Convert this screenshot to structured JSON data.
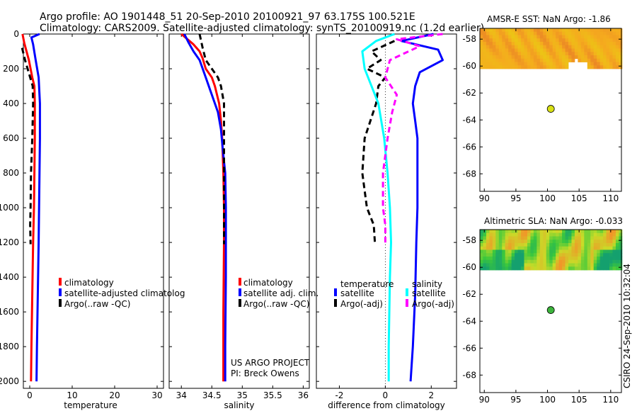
{
  "figure": {
    "title_line1": "Argo profile: AO 1901448_51 20-Sep-2010 20100921_97 63.175S 100.521E",
    "title_line2": "Climatology: CARS2009. Satellite-adjusted climatology: synTS_20100919.nc (1.2d earlier)",
    "side_stamp": "CSIRO 24-Sep-2010 10:32:04",
    "project_line1": "US ARGO PROJECT",
    "project_line2": "PI: Breck Owens"
  },
  "colors": {
    "climatology": "#ff0000",
    "satellite": "#0000ff",
    "argo": "#000000",
    "salinity_satellite": "#00ffff",
    "salinity_argo": "#ff00ff"
  },
  "chart_data": [
    {
      "id": "temperature",
      "type": "line",
      "xlabel": "temperature",
      "ylabel": "",
      "xlim": [
        -1.5,
        31.5
      ],
      "ylim": [
        2040,
        0
      ],
      "xticks": [
        0,
        10,
        20,
        30
      ],
      "yticks": [
        0,
        200,
        400,
        600,
        800,
        1000,
        1200,
        1400,
        1600,
        1800,
        2000
      ],
      "legend": [
        "climatology",
        "satellite-adjusted climatolog",
        "Argo(..raw -QC)"
      ],
      "series": [
        {
          "name": "climatology",
          "color": "#ff0000",
          "dash": "",
          "x": [
            -1.7,
            -1.3,
            -0.2,
            0.6,
            1.1,
            1.2,
            1.2,
            1.1,
            1.0,
            0.8,
            0.6,
            0.4,
            0.3
          ],
          "y": [
            0,
            50,
            150,
            250,
            300,
            400,
            600,
            800,
            1000,
            1200,
            1500,
            1800,
            2000
          ]
        },
        {
          "name": "satellite-adjusted climatology",
          "color": "#0000ff",
          "dash": "",
          "x": [
            2.3,
            0.4,
            0.8,
            1.4,
            2.1,
            2.4,
            2.4,
            2.3,
            2.2,
            2.1,
            1.9,
            1.7,
            1.6
          ],
          "y": [
            0,
            20,
            60,
            150,
            250,
            400,
            600,
            800,
            1000,
            1200,
            1500,
            1800,
            2000
          ]
        },
        {
          "name": "Argo(..raw -QC)",
          "color": "#000000",
          "dash": "8,5",
          "x": [
            -1.8,
            -1.1,
            0.1,
            0.7,
            0.8,
            0.6,
            0.3,
            0.2,
            0.1,
            0.2
          ],
          "y": [
            80,
            150,
            250,
            300,
            400,
            600,
            800,
            1000,
            1100,
            1210
          ]
        }
      ]
    },
    {
      "id": "salinity",
      "type": "line",
      "xlabel": "salinity",
      "ylabel": "",
      "xlim": [
        33.8,
        36.1
      ],
      "ylim": [
        2040,
        0
      ],
      "xticks": [
        34,
        34.5,
        35,
        35.5,
        36
      ],
      "legend": [
        "climatology",
        "satellite adj. clim.",
        "Argo(..raw -QC)"
      ],
      "series": [
        {
          "name": "climatology",
          "color": "#ff0000",
          "dash": "",
          "x": [
            34.0,
            34.2,
            34.3,
            34.35,
            34.4,
            34.5,
            34.55,
            34.62,
            34.65,
            34.67,
            34.69,
            34.7,
            34.7,
            34.69,
            34.69
          ],
          "y": [
            0,
            60,
            100,
            140,
            200,
            250,
            300,
            400,
            500,
            600,
            800,
            1000,
            1200,
            1600,
            2000
          ]
        },
        {
          "name": "satellite adj. clim.",
          "color": "#0000ff",
          "dash": "",
          "x": [
            34.05,
            34.12,
            34.2,
            34.3,
            34.4,
            34.5,
            34.6,
            34.65,
            34.69,
            34.72,
            34.73,
            34.73,
            34.73,
            34.72,
            34.72
          ],
          "y": [
            0,
            50,
            100,
            150,
            250,
            350,
            450,
            550,
            700,
            800,
            1000,
            1200,
            1400,
            1800,
            2000
          ]
        },
        {
          "name": "Argo(..raw -QC)",
          "color": "#000000",
          "dash": "8,5",
          "x": [
            34.3,
            34.35,
            34.4,
            34.5,
            34.6,
            34.65,
            34.7,
            34.7,
            34.7,
            34.7,
            34.7
          ],
          "y": [
            0,
            80,
            150,
            200,
            250,
            300,
            400,
            600,
            800,
            1000,
            1210
          ]
        }
      ]
    },
    {
      "id": "difference",
      "type": "line",
      "xlabel": "difference from climatology",
      "ylabel": "",
      "xlim": [
        -3.0,
        3.1
      ],
      "ylim": [
        2040,
        0
      ],
      "xticks": [
        -2,
        0,
        2
      ],
      "legend_headers": [
        "temperature",
        "salinity"
      ],
      "legend": [
        "satellite",
        "Argo(-adj)",
        "satellite",
        "Argo(-adj)"
      ],
      "series": [
        {
          "name": "satellite",
          "quantity": "temperature",
          "color": "#0000ff",
          "dash": "",
          "x": [
            2.1,
            0.7,
            2.3,
            2.5,
            1.5,
            1.3,
            1.2,
            1.3,
            1.4,
            1.4,
            1.4,
            1.35,
            1.3,
            1.2,
            1.1
          ],
          "y": [
            0,
            40,
            90,
            150,
            220,
            300,
            400,
            500,
            600,
            800,
            1000,
            1200,
            1500,
            1800,
            2000
          ]
        },
        {
          "name": "Argo(-adj)",
          "quantity": "temperature",
          "color": "#000000",
          "dash": "8,5",
          "x": [
            0.4,
            -0.6,
            -0.2,
            -0.8,
            0.0,
            -0.3,
            -0.4,
            -0.9,
            -1.0,
            -0.8,
            -0.5,
            -0.45
          ],
          "y": [
            40,
            100,
            150,
            200,
            250,
            300,
            400,
            600,
            800,
            1000,
            1100,
            1210
          ]
        },
        {
          "name": "satellite",
          "quantity": "salinity",
          "color": "#00ffff",
          "dash": "",
          "x": [
            0.4,
            -0.4,
            -1.0,
            -0.9,
            -0.6,
            -0.3,
            -0.05,
            0.1,
            0.2,
            0.25,
            0.2,
            0.15,
            0.15
          ],
          "y": [
            0,
            40,
            100,
            200,
            300,
            400,
            600,
            800,
            1000,
            1200,
            1400,
            1800,
            2000
          ]
        },
        {
          "name": "Argo(-adj)",
          "quantity": "salinity",
          "color": "#ff00ff",
          "dash": "8,5",
          "x": [
            2.5,
            0.5,
            1.5,
            0.2,
            0.0,
            0.5,
            0.3,
            0.1,
            -0.1,
            -0.1,
            0.0,
            0.0
          ],
          "y": [
            0,
            30,
            70,
            150,
            250,
            350,
            450,
            600,
            800,
            1000,
            1100,
            1210
          ]
        }
      ]
    },
    {
      "id": "sst_map",
      "type": "heatmap",
      "title": "AMSR-E SST: NaN Argo: -1.86",
      "xlim": [
        89.3,
        111.7
      ],
      "ylim": [
        -69.3,
        -57.2
      ],
      "xticks": [
        90,
        95,
        100,
        105,
        110
      ],
      "yticks": [
        -58,
        -60,
        -62,
        -64,
        -66,
        -68
      ],
      "data_extent_lat": [
        -60.1,
        -57.2
      ],
      "marker": {
        "lon": 100.521,
        "lat": -63.175,
        "color": "#d8e014"
      }
    },
    {
      "id": "sla_map",
      "type": "heatmap",
      "title": "Altimetric SLA: NaN Argo: -0.033",
      "xlim": [
        89.3,
        111.7
      ],
      "ylim": [
        -69.3,
        -57.2
      ],
      "xticks": [
        90,
        95,
        100,
        105,
        110
      ],
      "yticks": [
        -58,
        -60,
        -62,
        -64,
        -66,
        -68
      ],
      "data_extent_lat": [
        -60.1,
        -57.2
      ],
      "marker": {
        "lon": 100.521,
        "lat": -63.175,
        "color": "#3cb43c"
      }
    }
  ]
}
